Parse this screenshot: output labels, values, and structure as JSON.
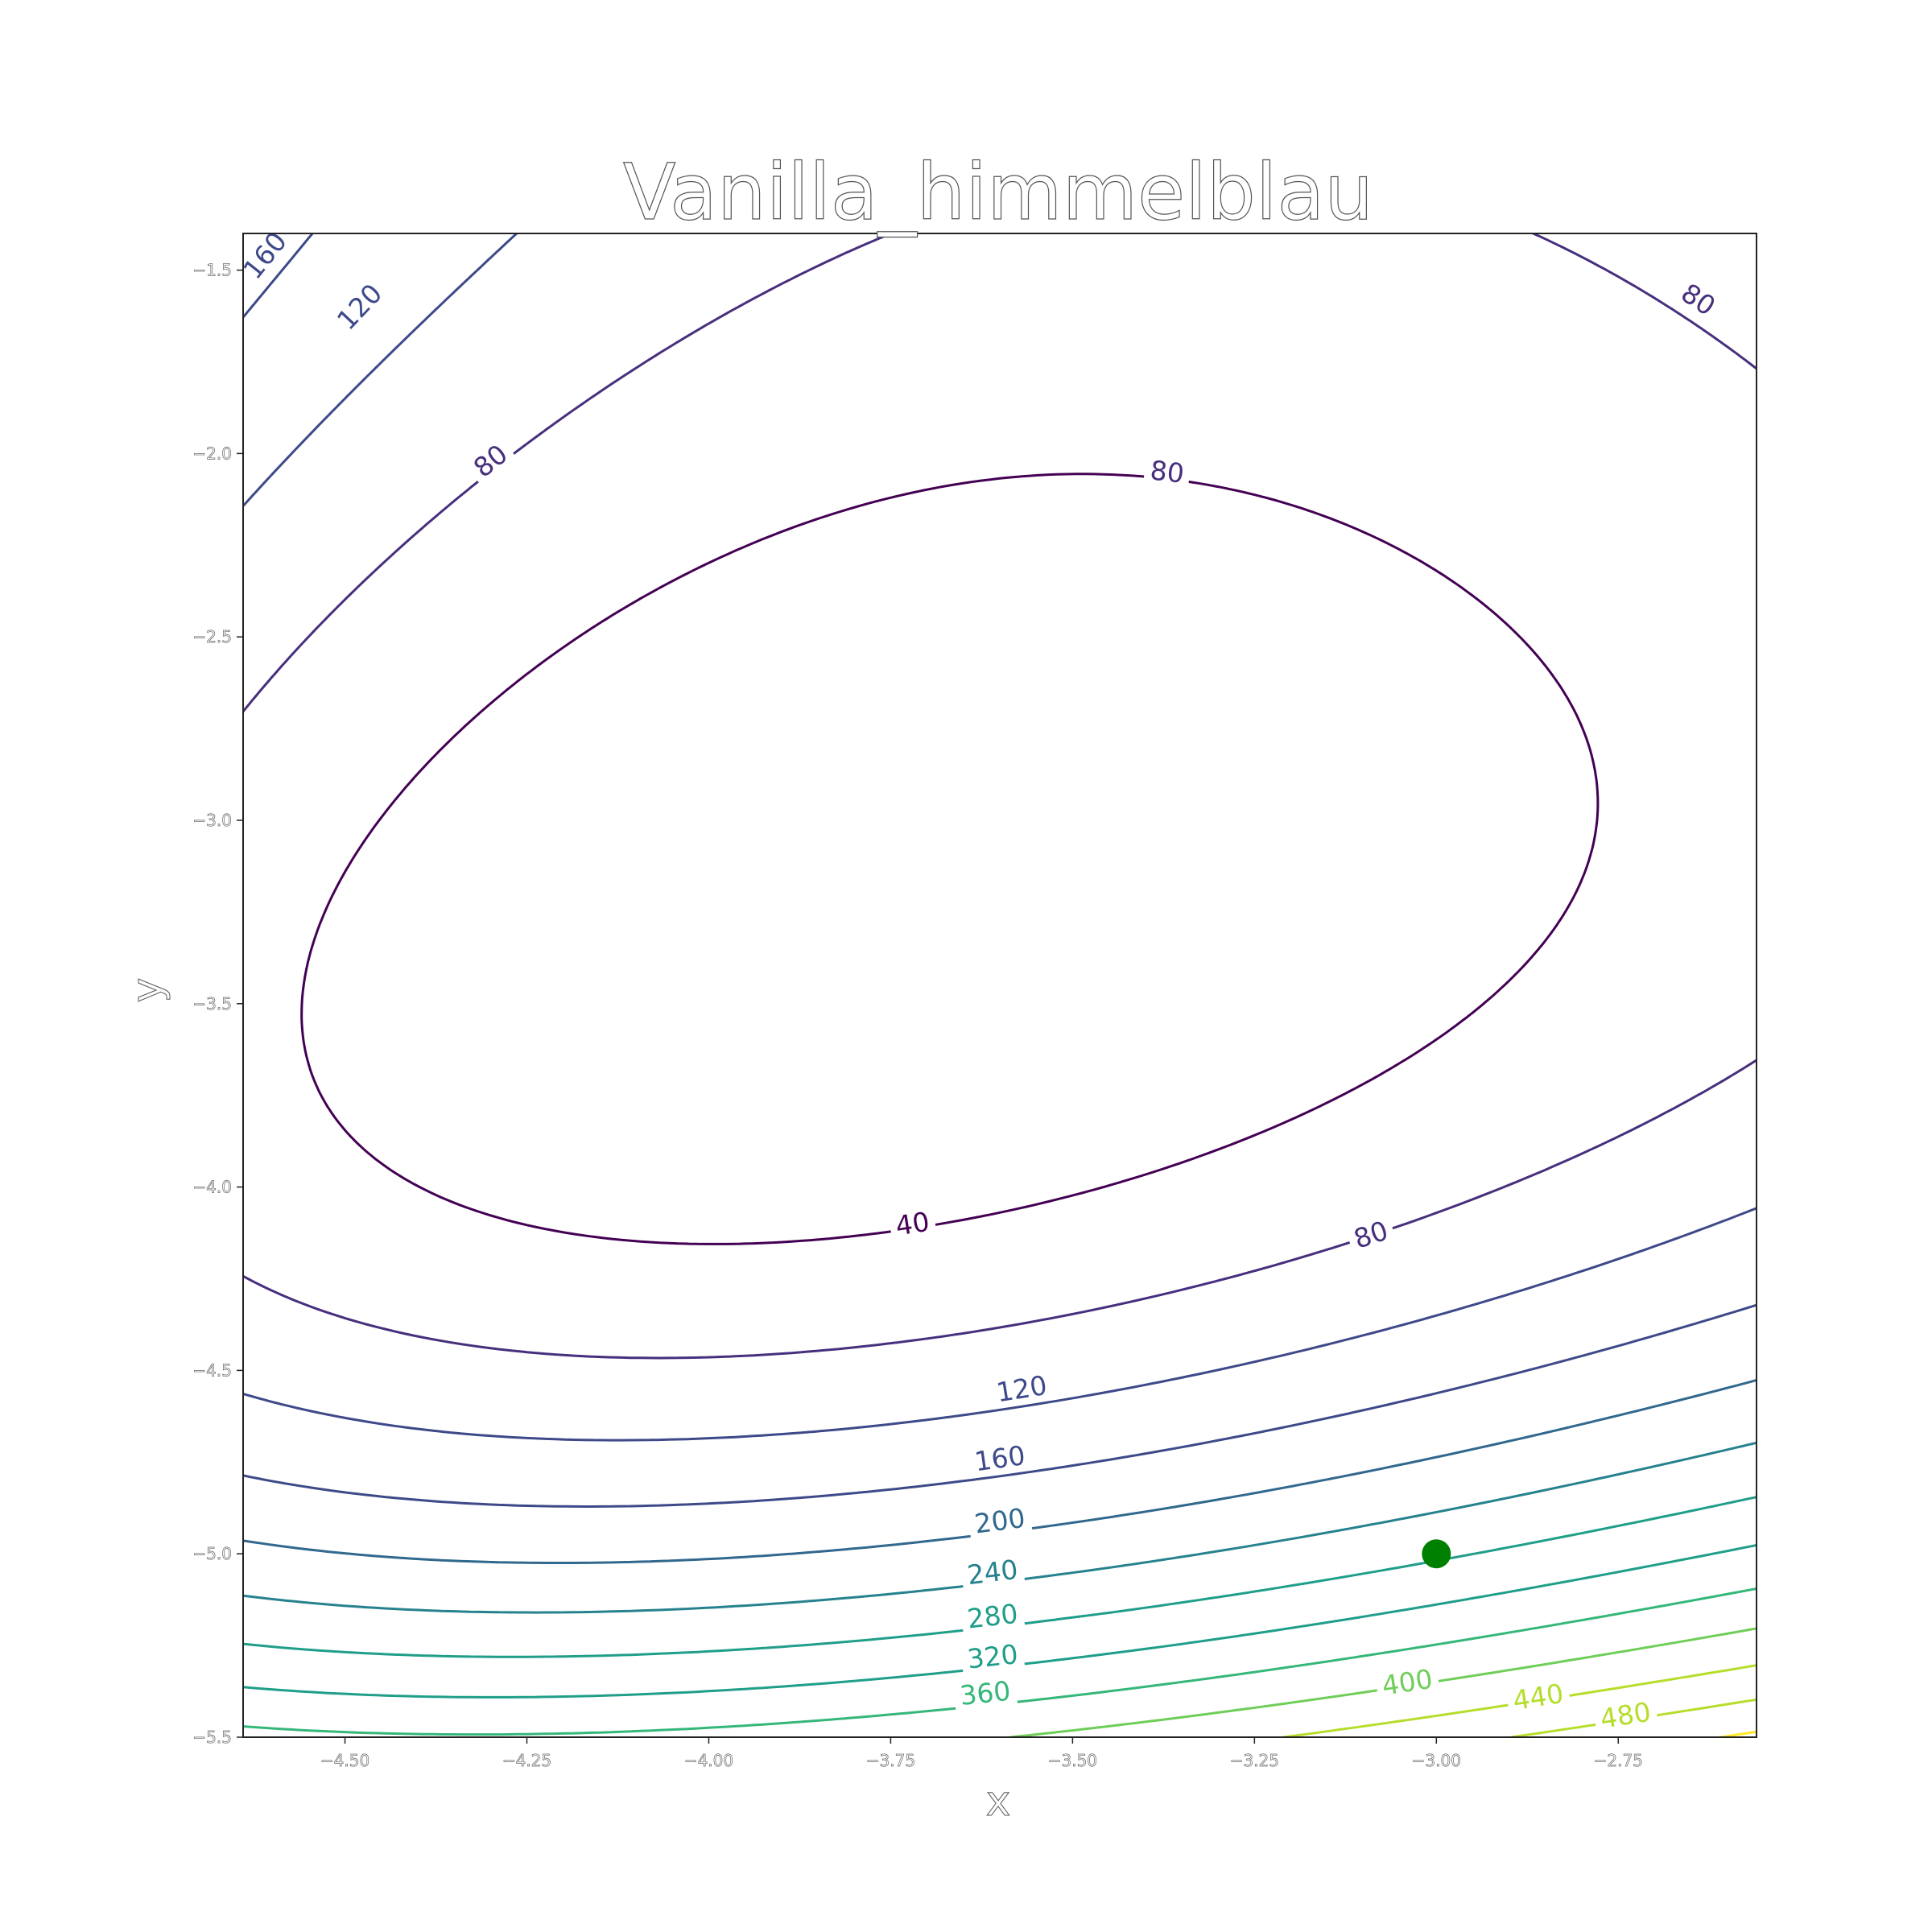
{
  "chart_data": {
    "type": "contour",
    "title": "Vanilla_himmelblau",
    "xlabel": "x",
    "ylabel": "y",
    "xlim": [
      -4.64,
      -2.56
    ],
    "ylim": [
      -5.5,
      -1.4
    ],
    "xticks": [
      {
        "value": -4.5,
        "label": "−4.50"
      },
      {
        "value": -4.25,
        "label": "−4.25"
      },
      {
        "value": -4.0,
        "label": "−4.00"
      },
      {
        "value": -3.75,
        "label": "−3.75"
      },
      {
        "value": -3.5,
        "label": "−3.50"
      },
      {
        "value": -3.25,
        "label": "−3.25"
      },
      {
        "value": -3.0,
        "label": "−3.00"
      },
      {
        "value": -2.75,
        "label": "−2.75"
      }
    ],
    "yticks": [
      {
        "value": -1.5,
        "label": "−1.5"
      },
      {
        "value": -2.0,
        "label": "−2.0"
      },
      {
        "value": -2.5,
        "label": "−2.5"
      },
      {
        "value": -3.0,
        "label": "−3.0"
      },
      {
        "value": -3.5,
        "label": "−3.5"
      },
      {
        "value": -4.0,
        "label": "−4.0"
      },
      {
        "value": -4.5,
        "label": "−4.5"
      },
      {
        "value": -5.0,
        "label": "−5.0"
      },
      {
        "value": -5.5,
        "label": "−5.5"
      }
    ],
    "levels": [
      40,
      80,
      120,
      160,
      200,
      240,
      280,
      320,
      360,
      400,
      440,
      480,
      520
    ],
    "colormap": "viridis",
    "level_colors": [
      "#440154",
      "#472f7d",
      "#3e4989",
      "#31688e",
      "#26828e",
      "#1f9e89",
      "#35b779",
      "#6ece58",
      "#b5de2b",
      "#fde725"
    ],
    "contour_labels": [
      {
        "text": "40",
        "x": -3.72,
        "y": -4.1
      },
      {
        "text": "80",
        "x": -3.37,
        "y": -2.05
      },
      {
        "text": "80",
        "x": -3.09,
        "y": -4.13
      },
      {
        "text": "80",
        "x": -4.3,
        "y": -2.02
      },
      {
        "text": "80",
        "x": -2.64,
        "y": -1.58
      },
      {
        "text": "120",
        "x": -4.48,
        "y": -1.6
      },
      {
        "text": "120",
        "x": -3.57,
        "y": -4.55
      },
      {
        "text": "160",
        "x": -4.61,
        "y": -1.46
      },
      {
        "text": "160",
        "x": -3.6,
        "y": -4.74
      },
      {
        "text": "200",
        "x": -3.6,
        "y": -4.91
      },
      {
        "text": "240",
        "x": -3.61,
        "y": -5.05
      },
      {
        "text": "280",
        "x": -3.61,
        "y": -5.17
      },
      {
        "text": "320",
        "x": -3.61,
        "y": -5.28
      },
      {
        "text": "360",
        "x": -3.62,
        "y": -5.38
      },
      {
        "text": "400",
        "x": -3.04,
        "y": -5.35
      },
      {
        "text": "440",
        "x": -2.86,
        "y": -5.39
      },
      {
        "text": "480",
        "x": -2.74,
        "y": -5.44
      }
    ],
    "marker": {
      "x": -3.0,
      "y": -5.0,
      "color": "#008000"
    },
    "grid": false,
    "legend": "none"
  }
}
